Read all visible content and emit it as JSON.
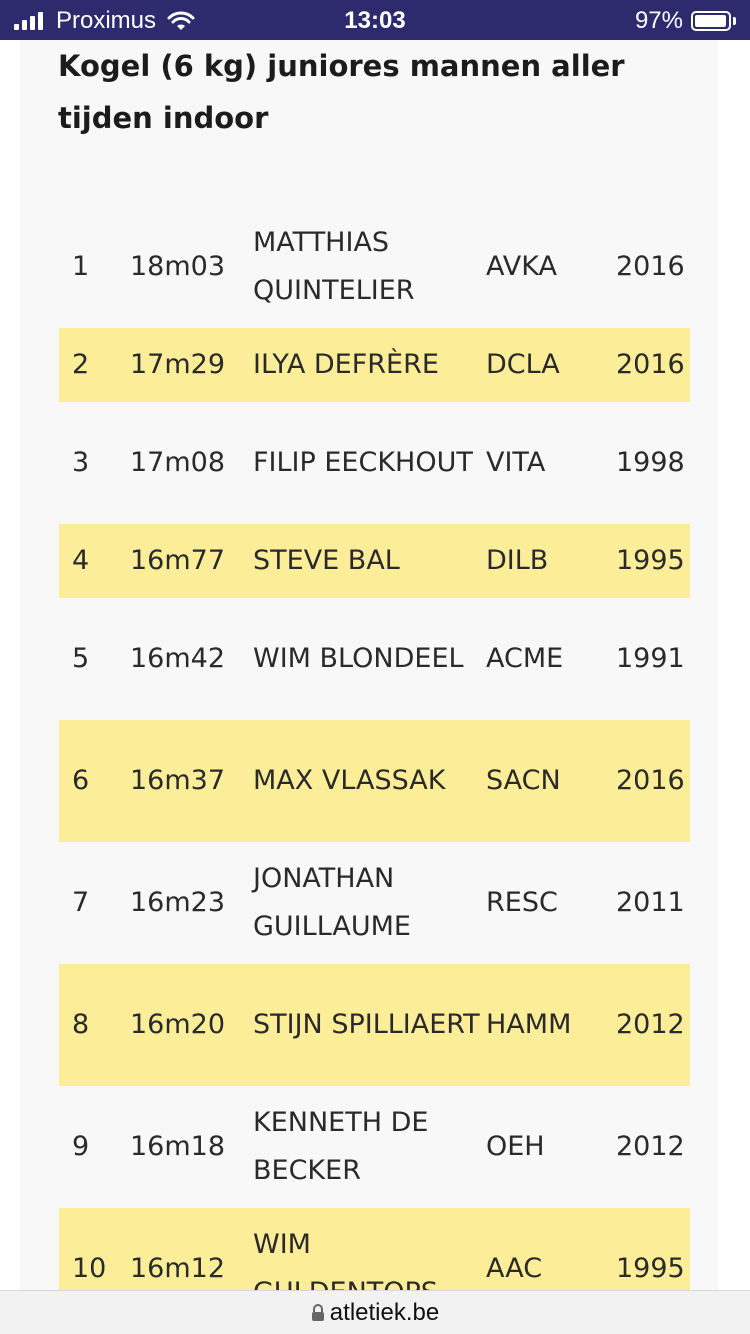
{
  "status_bar": {
    "carrier": "Proximus",
    "time": "13:03",
    "battery": "97%",
    "battery_level": 0.97,
    "icons": [
      "signal-icon",
      "wifi-icon",
      "battery-icon"
    ]
  },
  "page": {
    "title": "Kogel (6 kg) juniores mannen aller tijden indoor"
  },
  "table": {
    "rows": [
      {
        "rank": "1",
        "performance": "18m03",
        "athlete": "MATTHIAS QUINTELIER",
        "club": "AVKA",
        "year": "2016"
      },
      {
        "rank": "2",
        "performance": "17m29",
        "athlete": "ILYA DEFRÈRE",
        "club": "DCLA",
        "year": "2016"
      },
      {
        "rank": "3",
        "performance": "17m08",
        "athlete": "FILIP EECKHOUT",
        "club": "VITA",
        "year": "1998"
      },
      {
        "rank": "4",
        "performance": "16m77",
        "athlete": "STEVE BAL",
        "club": "DILB",
        "year": "1995"
      },
      {
        "rank": "5",
        "performance": "16m42",
        "athlete": "WIM BLONDEEL",
        "club": "ACME",
        "year": "1991"
      },
      {
        "rank": "6",
        "performance": "16m37",
        "athlete": "MAX VLASSAK",
        "club": "SACN",
        "year": "2016"
      },
      {
        "rank": "7",
        "performance": "16m23",
        "athlete": "JONATHAN GUILLAUME",
        "club": "RESC",
        "year": "2011"
      },
      {
        "rank": "8",
        "performance": "16m20",
        "athlete": "STIJN SPILLIAERT",
        "club": "HAMM",
        "year": "2012"
      },
      {
        "rank": "9",
        "performance": "16m18",
        "athlete": "KENNETH DE BECKER",
        "club": "OEH",
        "year": "2012"
      },
      {
        "rank": "10",
        "performance": "16m12",
        "athlete": "WIM GULDENTOPS",
        "club": "AAC",
        "year": "1995"
      }
    ]
  },
  "browser": {
    "url": "atletiek.be",
    "icon": "lock-icon"
  }
}
